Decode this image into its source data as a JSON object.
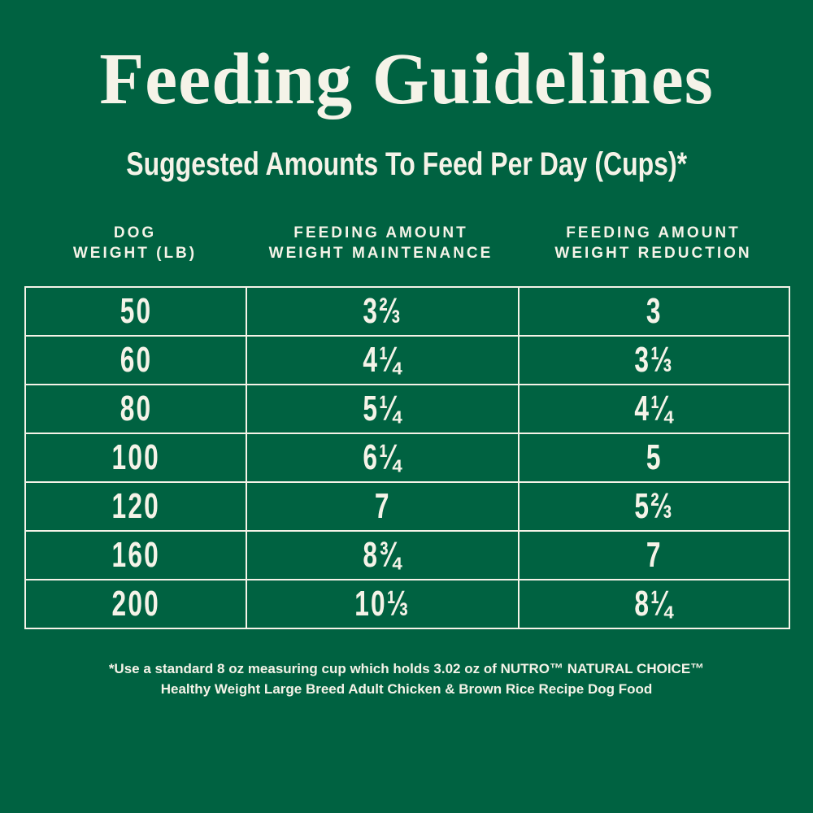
{
  "title": "Feeding Guidelines",
  "subtitle": "Suggested Amounts To Feed Per Day (Cups)*",
  "columns": [
    {
      "line1": "DOG",
      "line2": "WEIGHT (LB)"
    },
    {
      "line1": "FEEDING AMOUNT",
      "line2": "WEIGHT MAINTENANCE"
    },
    {
      "line1": "FEEDING AMOUNT",
      "line2": "WEIGHT REDUCTION"
    }
  ],
  "rows": [
    [
      "50",
      "3⅔",
      "3"
    ],
    [
      "60",
      "4¼",
      "3⅓"
    ],
    [
      "80",
      "5¼",
      "4¼"
    ],
    [
      "100",
      "6¼",
      "5"
    ],
    [
      "120",
      "7",
      "5⅔"
    ],
    [
      "160",
      "8¾",
      "7"
    ],
    [
      "200",
      "10⅓",
      "8¼"
    ]
  ],
  "footnote": {
    "line1": "*Use a standard 8 oz measuring cup which holds 3.02 oz of NUTRO™ NATURAL CHOICE™",
    "line2": "Healthy Weight Large Breed Adult Chicken & Brown Rice Recipe Dog Food"
  },
  "colors": {
    "background": "#006241",
    "text": "#f5f3e8"
  }
}
